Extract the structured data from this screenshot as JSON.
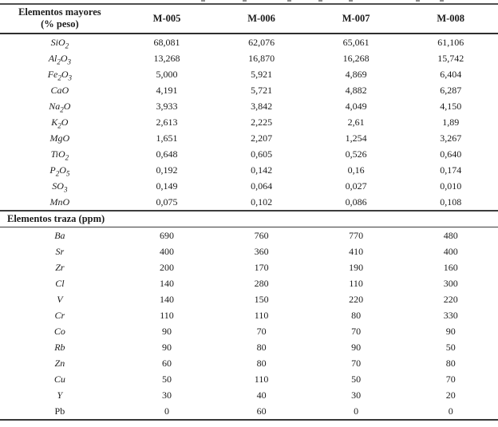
{
  "page": {
    "background": "#ffffff",
    "text_color": "#1c1c1c",
    "rule_color": "#383838"
  },
  "table": {
    "header": {
      "col1_line1": "Elementos mayores",
      "col1_line2": "(% peso)",
      "sample_columns": [
        "M-005",
        "M-006",
        "M-007",
        "M-008"
      ]
    },
    "sections": [
      {
        "title": null,
        "rows": [
          {
            "label": "SiO_2_",
            "italic": true,
            "values": [
              "68,081",
              "62,076",
              "65,061",
              "61,106"
            ]
          },
          {
            "label": "Al_2_O_3_",
            "italic": true,
            "values": [
              "13,268",
              "16,870",
              "16,268",
              "15,742"
            ]
          },
          {
            "label": "Fe_2_O_3_",
            "italic": true,
            "values": [
              "5,000",
              "5,921",
              "4,869",
              "6,404"
            ]
          },
          {
            "label": "CaO",
            "italic": true,
            "values": [
              "4,191",
              "5,721",
              "4,882",
              "6,287"
            ]
          },
          {
            "label": "Na_2_O",
            "italic": true,
            "values": [
              "3,933",
              "3,842",
              "4,049",
              "4,150"
            ]
          },
          {
            "label": "K_2_O",
            "italic": true,
            "values": [
              "2,613",
              "2,225",
              "2,61",
              "1,89"
            ]
          },
          {
            "label": "MgO",
            "italic": true,
            "values": [
              "1,651",
              "2,207",
              "1,254",
              "3,267"
            ]
          },
          {
            "label": "TiO_2_",
            "italic": true,
            "values": [
              "0,648",
              "0,605",
              "0,526",
              "0,640"
            ]
          },
          {
            "label": "P_2_O_5_",
            "italic": true,
            "values": [
              "0,192",
              "0,142",
              "0,16",
              "0,174"
            ]
          },
          {
            "label": "SO_3_",
            "italic": true,
            "values": [
              "0,149",
              "0,064",
              "0,027",
              "0,010"
            ]
          },
          {
            "label": "MnO",
            "italic": true,
            "values": [
              "0,075",
              "0,102",
              "0,086",
              "0,108"
            ]
          }
        ]
      },
      {
        "title": "Elementos traza (ppm)",
        "rows": [
          {
            "label": "Ba",
            "italic": true,
            "values": [
              "690",
              "760",
              "770",
              "480"
            ]
          },
          {
            "label": "Sr",
            "italic": true,
            "values": [
              "400",
              "360",
              "410",
              "400"
            ]
          },
          {
            "label": "Zr",
            "italic": true,
            "values": [
              "200",
              "170",
              "190",
              "160"
            ]
          },
          {
            "label": "Cl",
            "italic": true,
            "values": [
              "140",
              "280",
              "110",
              "300"
            ]
          },
          {
            "label": "V",
            "italic": true,
            "values": [
              "140",
              "150",
              "220",
              "220"
            ]
          },
          {
            "label": "Cr",
            "italic": true,
            "values": [
              "110",
              "110",
              "80",
              "330"
            ]
          },
          {
            "label": "Co",
            "italic": true,
            "values": [
              "90",
              "70",
              "70",
              "90"
            ]
          },
          {
            "label": "Rb",
            "italic": true,
            "values": [
              "90",
              "80",
              "90",
              "50"
            ]
          },
          {
            "label": "Zn",
            "italic": true,
            "values": [
              "60",
              "80",
              "70",
              "80"
            ]
          },
          {
            "label": "Cu",
            "italic": true,
            "values": [
              "50",
              "110",
              "50",
              "70"
            ]
          },
          {
            "label": "Y",
            "italic": true,
            "values": [
              "30",
              "40",
              "30",
              "20"
            ]
          },
          {
            "label": "Pb",
            "italic": false,
            "values": [
              "0",
              "60",
              "0",
              "0"
            ]
          }
        ]
      }
    ]
  }
}
